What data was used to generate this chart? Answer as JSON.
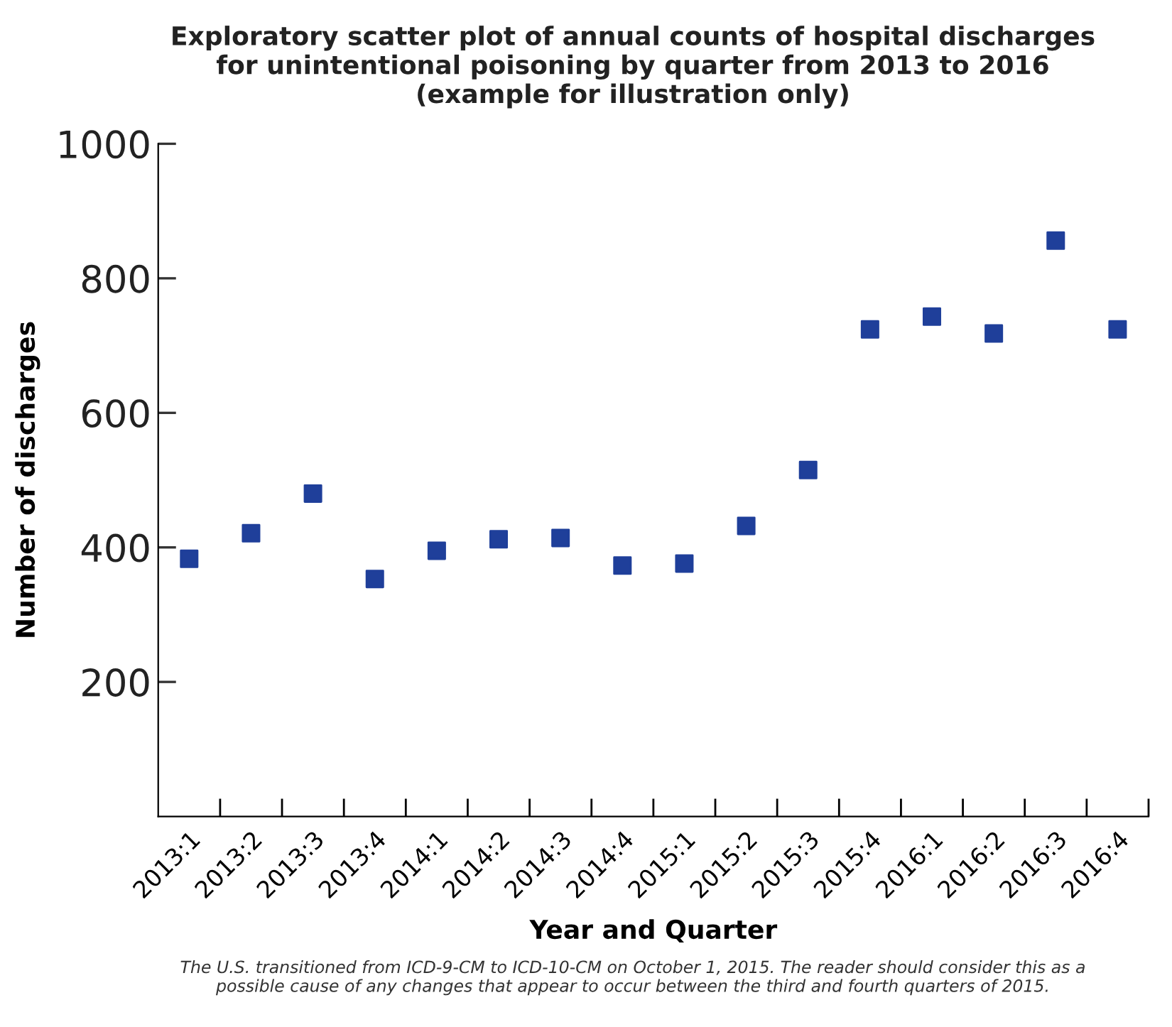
{
  "chart_data": {
    "type": "scatter",
    "title": "Exploratory scatter plot of annual counts of hospital discharges\nfor unintentional poisoning by quarter from 2013 to 2016\n(example for illustration only)",
    "xlabel": "Year and Quarter",
    "ylabel": "Number of discharges",
    "categories": [
      "2013:1",
      "2013:2",
      "2013:3",
      "2013:4",
      "2014:1",
      "2014:2",
      "2014:3",
      "2014:4",
      "2015:1",
      "2015:2",
      "2015:3",
      "2015:4",
      "2016:1",
      "2016:2",
      "2016:3",
      "2016:4"
    ],
    "series": [
      {
        "color": "#1f3f9a",
        "values": [
          383,
          421,
          480,
          353,
          395,
          412,
          414,
          373,
          376,
          432,
          515,
          724,
          743,
          718,
          856,
          724
        ]
      }
    ],
    "ylim": [
      0,
      1000
    ],
    "yticks": [
      200,
      400,
      600,
      800,
      1000
    ],
    "marker": "square",
    "grid": false,
    "legend": false,
    "annotations": [
      "The U.S. transitioned from ICD-9-CM to ICD-10-CM on October 1, 2015. The reader should consider this as a\npossible cause of any changes that appear to occur between the third and fourth quarters of 2015."
    ]
  }
}
